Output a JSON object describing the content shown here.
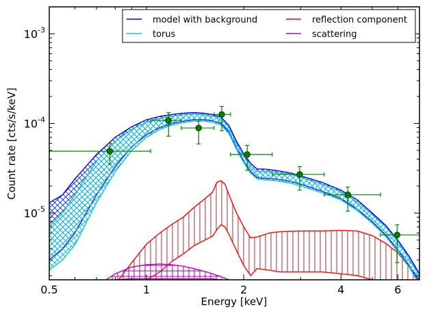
{
  "chart_data": {
    "type": "line",
    "xlabel": "Energy [keV]",
    "ylabel": "Count rate [cts/s/keV]",
    "xscale": "log",
    "yscale": "log",
    "xlim": [
      0.5,
      7.0
    ],
    "ylim": [
      1.8e-06,
      0.002
    ],
    "x_ticks": [
      0.5,
      1,
      2,
      4,
      6
    ],
    "x_tick_labels": [
      "0.5",
      "1",
      "2",
      "4",
      "6"
    ],
    "y_ticks": [
      1e-05,
      0.0001,
      0.001
    ],
    "y_tick_labels": [
      {
        "base": "10",
        "exp": "-5"
      },
      {
        "base": "10",
        "exp": "-4"
      },
      {
        "base": "10",
        "exp": "-3"
      }
    ],
    "legend_placement": "top-right",
    "legend_columns": 2,
    "series": [
      {
        "name": "model with background",
        "color": "#0000ff",
        "style": "band",
        "x": [
          0.5,
          0.55,
          0.6,
          0.7,
          0.8,
          0.9,
          1.0,
          1.1,
          1.2,
          1.3,
          1.4,
          1.5,
          1.6,
          1.7,
          1.8,
          1.9,
          2.0,
          2.1,
          2.2,
          2.3,
          2.5,
          2.8,
          3.0,
          3.5,
          4.0,
          4.5,
          5.0,
          5.5,
          6.0,
          6.5,
          7.0
        ],
        "upper": [
          1.3e-05,
          1.6e-05,
          2.4e-05,
          4.5e-05,
          7e-05,
          9.2e-05,
          0.00011,
          0.00012,
          0.000126,
          0.00013,
          0.000132,
          0.00013,
          0.000126,
          0.000118,
          9.5e-05,
          6.3e-05,
          4.6e-05,
          3.6e-05,
          3.1e-05,
          3.1e-05,
          3e-05,
          2.8e-05,
          2.6e-05,
          2.2e-05,
          1.8e-05,
          1.4e-05,
          1e-05,
          7.3e-06,
          5e-06,
          3.3e-06,
          2.1e-06
        ],
        "lower": [
          3e-06,
          4e-06,
          6e-06,
          1.6e-05,
          3.3e-05,
          5.5e-05,
          7.5e-05,
          9e-05,
          0.0001,
          0.000106,
          0.00011,
          0.00011,
          0.000107,
          0.0001,
          8e-05,
          5.3e-05,
          3.8e-05,
          2.9e-05,
          2.5e-05,
          2.45e-05,
          2.4e-05,
          2.25e-05,
          2.1e-05,
          1.75e-05,
          1.45e-05,
          1.1e-05,
          8e-06,
          5.7e-06,
          3.9e-06,
          2.6e-06,
          1.7e-06
        ]
      },
      {
        "name": "torus",
        "color": "#17becf",
        "style": "band",
        "x": [
          0.5,
          0.55,
          0.6,
          0.7,
          0.8,
          0.9,
          1.0,
          1.1,
          1.2,
          1.3,
          1.4,
          1.5,
          1.6,
          1.7,
          1.8,
          1.9,
          2.0,
          2.1,
          2.2,
          2.3,
          2.5,
          2.8,
          3.0,
          3.5,
          4.0,
          4.5,
          5.0,
          5.5,
          6.0,
          6.5,
          7.0
        ],
        "upper": [
          7e-06,
          1e-05,
          1.6e-05,
          3.8e-05,
          6.3e-05,
          8.6e-05,
          0.000103,
          0.000114,
          0.000121,
          0.000125,
          0.000127,
          0.000125,
          0.000121,
          0.000113,
          9e-05,
          5.9e-05,
          4.3e-05,
          3.35e-05,
          2.9e-05,
          2.9e-05,
          2.85e-05,
          2.7e-05,
          2.5e-05,
          2.1e-05,
          1.72e-05,
          1.33e-05,
          9.6e-06,
          7e-06,
          4.8e-06,
          3.1e-06,
          2e-06
        ],
        "lower": [
          2.3e-06,
          3e-06,
          4.4e-06,
          1.3e-05,
          2.9e-05,
          5e-05,
          7e-05,
          8.6e-05,
          9.6e-05,
          0.000102,
          0.000106,
          0.000106,
          0.000103,
          9.6e-05,
          7.7e-05,
          5.1e-05,
          3.65e-05,
          2.8e-05,
          2.4e-05,
          2.35e-05,
          2.3e-05,
          2.15e-05,
          2e-05,
          1.68e-05,
          1.4e-05,
          1.06e-05,
          7.7e-06,
          5.5e-06,
          3.7e-06,
          2.5e-06,
          1.6e-06
        ]
      },
      {
        "name": "reflection component",
        "color": "#ff0000",
        "style": "band-hatched",
        "x": [
          0.82,
          0.9,
          1.0,
          1.1,
          1.2,
          1.3,
          1.4,
          1.5,
          1.6,
          1.65,
          1.7,
          1.75,
          1.8,
          1.9,
          2.0,
          2.1,
          2.2,
          2.4,
          2.6,
          3.0,
          3.5,
          4.0,
          4.5,
          5.0,
          5.5,
          6.0,
          6.5,
          7.0
        ],
        "upper": [
          1.8e-06,
          2.8e-06,
          4.5e-06,
          6e-06,
          7.5e-06,
          9e-06,
          1.15e-05,
          1.4e-05,
          1.7e-05,
          2.2e-05,
          2.3e-05,
          2.1e-05,
          1.6e-05,
          1e-05,
          7e-06,
          5.3e-06,
          5.4e-06,
          6e-06,
          6.2e-06,
          6.3e-06,
          6.3e-06,
          6.4e-06,
          6.3e-06,
          5.6e-06,
          4.6e-06,
          3.6e-06,
          2.5e-06,
          1.8e-06
        ],
        "lower": [
          null,
          null,
          1.8e-06,
          2.2e-06,
          2.9e-06,
          3.5e-06,
          4.3e-06,
          4.9e-06,
          5.5e-06,
          6.5e-06,
          7.4e-06,
          7e-06,
          5.8e-06,
          3.8e-06,
          2.6e-06,
          2e-06,
          2.4e-06,
          2.3e-06,
          2.2e-06,
          2.2e-06,
          2.2e-06,
          2.1e-06,
          2e-06,
          1.8e-06,
          null,
          null,
          null,
          null
        ]
      },
      {
        "name": "scattering",
        "color": "#bf00bf",
        "style": "band-hatched",
        "x": [
          0.75,
          0.8,
          0.9,
          1.0,
          1.1,
          1.2,
          1.3,
          1.4,
          1.5,
          1.6,
          1.7,
          1.8
        ],
        "upper": [
          1.8e-06,
          2.1e-06,
          2.5e-06,
          2.65e-06,
          2.7e-06,
          2.65e-06,
          2.55e-06,
          2.4e-06,
          2.25e-06,
          2.1e-06,
          1.95e-06,
          1.8e-06
        ],
        "lower": [
          null,
          1.8e-06,
          1.85e-06,
          1.85e-06,
          1.85e-06,
          1.85e-06,
          1.85e-06,
          1.85e-06,
          1.85e-06,
          1.85e-06,
          1.8e-06,
          null
        ]
      }
    ],
    "data_points": {
      "color": "#008000",
      "points": [
        {
          "x": 0.77,
          "y": 4.9e-05,
          "xlo": 0.5,
          "xhi": 1.03,
          "ylo": 3.5e-05,
          "yhi": 6e-05
        },
        {
          "x": 1.17,
          "y": 0.000108,
          "xlo": 1.03,
          "xhi": 1.28,
          "ylo": 7.2e-05,
          "yhi": 0.000132
        },
        {
          "x": 1.45,
          "y": 8.9e-05,
          "xlo": 1.28,
          "xhi": 1.62,
          "ylo": 5.9e-05,
          "yhi": 0.000106
        },
        {
          "x": 1.71,
          "y": 0.000126,
          "xlo": 1.62,
          "xhi": 1.82,
          "ylo": 8.3e-05,
          "yhi": 0.000155
        },
        {
          "x": 2.05,
          "y": 4.5e-05,
          "xlo": 1.82,
          "xhi": 2.45,
          "ylo": 3e-05,
          "yhi": 5.7e-05
        },
        {
          "x": 2.98,
          "y": 2.7e-05,
          "xlo": 2.45,
          "xhi": 3.55,
          "ylo": 1.8e-05,
          "yhi": 3.3e-05
        },
        {
          "x": 4.2,
          "y": 1.6e-05,
          "xlo": 3.55,
          "xhi": 5.3,
          "ylo": 1.05e-05,
          "yhi": 1.95e-05
        },
        {
          "x": 5.97,
          "y": 5.7e-06,
          "xlo": 5.3,
          "xhi": 7.0,
          "ylo": 2.8e-06,
          "yhi": 7.4e-06
        }
      ]
    }
  }
}
